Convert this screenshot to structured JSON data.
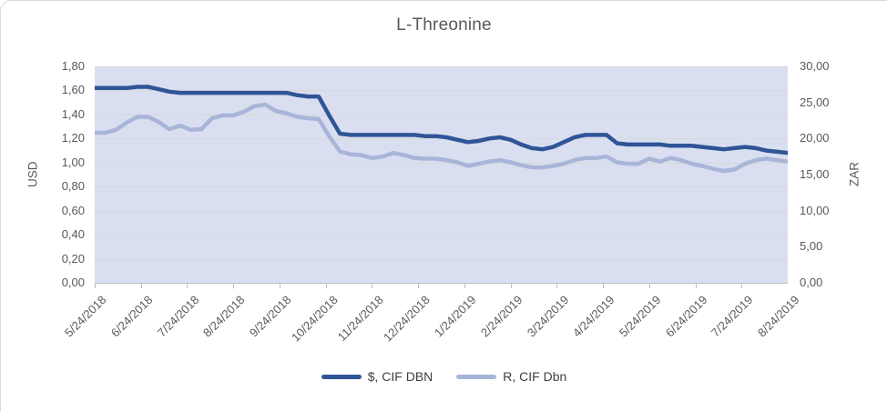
{
  "chart_data": {
    "type": "line",
    "title": "L-Threonine",
    "grid": true,
    "legend_position": "bottom",
    "left_axis": {
      "title": "USD",
      "min": 0,
      "max": 1.8,
      "tick_labels": [
        "1,80",
        "1,60",
        "1,40",
        "1,20",
        "1,00",
        "0,80",
        "0,60",
        "0,40",
        "0,20",
        "0,00"
      ]
    },
    "right_axis": {
      "title": "ZAR",
      "min": 0,
      "max": 30,
      "tick_labels": [
        "30,00",
        "25,00",
        "20,00",
        "15,00",
        "10,00",
        "5,00",
        "0,00"
      ]
    },
    "x_axis": {
      "tick_labels": [
        "5/24/2018",
        "6/24/2018",
        "7/24/2018",
        "8/24/2018",
        "9/24/2018",
        "10/24/2018",
        "11/24/2018",
        "12/24/2018",
        "1/24/2019",
        "2/24/2019",
        "3/24/2019",
        "4/24/2019",
        "5/24/2019",
        "6/24/2019",
        "7/24/2019",
        "8/24/2019"
      ]
    },
    "x": [
      "5/24/2018",
      "5/31/2018",
      "6/7/2018",
      "6/14/2018",
      "6/21/2018",
      "6/28/2018",
      "7/5/2018",
      "7/12/2018",
      "7/19/2018",
      "7/26/2018",
      "8/2/2018",
      "8/9/2018",
      "8/16/2018",
      "8/23/2018",
      "8/30/2018",
      "9/6/2018",
      "9/13/2018",
      "9/20/2018",
      "9/27/2018",
      "10/4/2018",
      "10/11/2018",
      "10/18/2018",
      "10/25/2018",
      "11/1/2018",
      "11/8/2018",
      "11/15/2018",
      "11/22/2018",
      "11/29/2018",
      "12/6/2018",
      "12/13/2018",
      "12/20/2018",
      "12/27/2018",
      "1/3/2019",
      "1/10/2019",
      "1/17/2019",
      "1/24/2019",
      "1/31/2019",
      "2/7/2019",
      "2/14/2019",
      "2/21/2019",
      "2/28/2019",
      "3/7/2019",
      "3/14/2019",
      "3/21/2019",
      "3/28/2019",
      "4/4/2019",
      "4/11/2019",
      "4/18/2019",
      "4/25/2019",
      "5/2/2019",
      "5/9/2019",
      "5/16/2019",
      "5/23/2019",
      "5/30/2019",
      "6/6/2019",
      "6/13/2019",
      "6/20/2019",
      "6/27/2019",
      "7/4/2019",
      "7/11/2019",
      "7/18/2019",
      "7/25/2019",
      "8/1/2019",
      "8/8/2019",
      "8/15/2019",
      "8/22/2019"
    ],
    "series": [
      {
        "name": "$, CIF DBN",
        "axis": "left",
        "unit": "USD",
        "color": "#2f5597",
        "values": [
          1.62,
          1.62,
          1.62,
          1.62,
          1.63,
          1.63,
          1.61,
          1.59,
          1.58,
          1.58,
          1.58,
          1.58,
          1.58,
          1.58,
          1.58,
          1.58,
          1.58,
          1.58,
          1.58,
          1.56,
          1.55,
          1.55,
          1.39,
          1.24,
          1.23,
          1.23,
          1.23,
          1.23,
          1.23,
          1.23,
          1.23,
          1.22,
          1.22,
          1.21,
          1.19,
          1.17,
          1.18,
          1.2,
          1.21,
          1.19,
          1.15,
          1.12,
          1.11,
          1.13,
          1.17,
          1.21,
          1.23,
          1.23,
          1.23,
          1.16,
          1.15,
          1.15,
          1.15,
          1.15,
          1.14,
          1.14,
          1.14,
          1.13,
          1.12,
          1.11,
          1.12,
          1.13,
          1.12,
          1.1,
          1.09,
          1.08
        ]
      },
      {
        "name": "R, CIF Dbn",
        "axis": "right",
        "unit": "ZAR",
        "color": "#a9b5d8",
        "values": [
          20.8,
          20.8,
          21.2,
          22.2,
          23.0,
          23.0,
          22.3,
          21.3,
          21.8,
          21.2,
          21.3,
          22.8,
          23.2,
          23.2,
          23.7,
          24.5,
          24.7,
          23.8,
          23.5,
          23.0,
          22.8,
          22.7,
          20.3,
          18.2,
          17.8,
          17.7,
          17.3,
          17.5,
          18.0,
          17.7,
          17.3,
          17.2,
          17.2,
          17.0,
          16.7,
          16.2,
          16.5,
          16.8,
          17.0,
          16.7,
          16.3,
          16.0,
          16.0,
          16.2,
          16.5,
          17.0,
          17.3,
          17.3,
          17.5,
          16.7,
          16.5,
          16.5,
          17.2,
          16.8,
          17.3,
          17.0,
          16.5,
          16.2,
          15.8,
          15.5,
          15.7,
          16.5,
          17.0,
          17.2,
          17.0,
          16.8
        ]
      }
    ],
    "colors": {
      "plot_fill": "#d9dff0",
      "gridline": "#d8d8d8",
      "axis_line": "#bfbfbf",
      "text": "#595959",
      "legend_text": "#404040",
      "frame_border": "#d9d9d9"
    }
  }
}
